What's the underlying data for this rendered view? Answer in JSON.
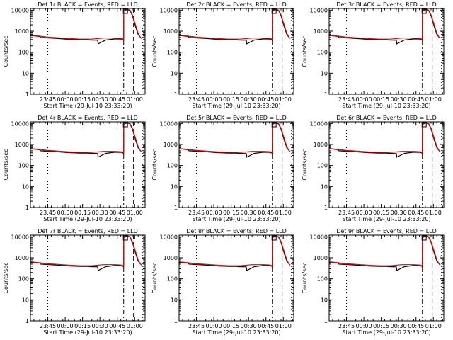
{
  "chart_data": {
    "type": "line",
    "layout": "3x3 grid of panels",
    "yscale": "log",
    "ylim": [
      1,
      12000
    ],
    "ylabel": "Counts/sec",
    "yticks": [
      "1",
      "10",
      "100",
      "1000",
      "10000"
    ],
    "x_units": "minutes since 23:33:20",
    "xlim": [
      -3,
      96
    ],
    "xticks": [
      {
        "t": 12,
        "label": "23:45"
      },
      {
        "t": 27,
        "label": "00:00"
      },
      {
        "t": 42,
        "label": "00:15"
      },
      {
        "t": 57,
        "label": "00:30"
      },
      {
        "t": 72,
        "label": "00:45"
      },
      {
        "t": 87,
        "label": "01:00"
      }
    ],
    "xlabel": "Start Time (29-Jul-10 23:33:20)",
    "series_names": [
      "Events (BLACK)",
      "LLD (RED)"
    ],
    "markers": {
      "dotted": [
        12,
        94
      ],
      "dashdot": [
        77.5
      ],
      "dashed": [
        86
      ],
      "square_at": 79
    },
    "panels": [
      {
        "title": "Det 1r BLACK = Events, RED = LLD"
      },
      {
        "title": "Det 2r BLACK = Events, RED = LLD"
      },
      {
        "title": "Det 3r BLACK = Events, RED = LLD"
      },
      {
        "title": "Det 4r BLACK = Events, RED = LLD"
      },
      {
        "title": "Det 5r BLACK = Events, RED = LLD"
      },
      {
        "title": "Det 6r BLACK = Events, RED = LLD"
      },
      {
        "title": "Det 7r BLACK = Events, RED = LLD"
      },
      {
        "title": "Det 8r BLACK = Events, RED = LLD"
      },
      {
        "title": "Det 9r BLACK = Events, RED = LLD"
      }
    ],
    "series": [
      {
        "name": "Events",
        "color": "#000000",
        "t": [
          -3,
          5,
          5.5,
          12,
          20,
          30,
          40,
          47,
          48,
          55,
          55.5,
          62,
          70,
          76,
          77.5,
          77.6,
          79,
          81,
          83,
          85,
          88,
          90,
          92,
          93
        ],
        "values": [
          640,
          560,
          500,
          480,
          450,
          410,
          390,
          390,
          380,
          370,
          250,
          380,
          430,
          420,
          380,
          9000,
          10000,
          10500,
          9500,
          5500,
          1500,
          700,
          500,
          450
        ]
      },
      {
        "name": "LLD",
        "color": "#e00000",
        "t": [
          -3,
          5,
          12,
          20,
          30,
          40,
          50,
          60,
          70,
          76,
          77.5,
          77.6,
          79,
          81,
          83,
          85,
          88,
          90,
          92,
          93
        ],
        "values": [
          650,
          580,
          520,
          490,
          450,
          420,
          420,
          470,
          470,
          450,
          400,
          9500,
          10500,
          11000,
          10000,
          6000,
          1800,
          800,
          500,
          450
        ]
      }
    ]
  }
}
